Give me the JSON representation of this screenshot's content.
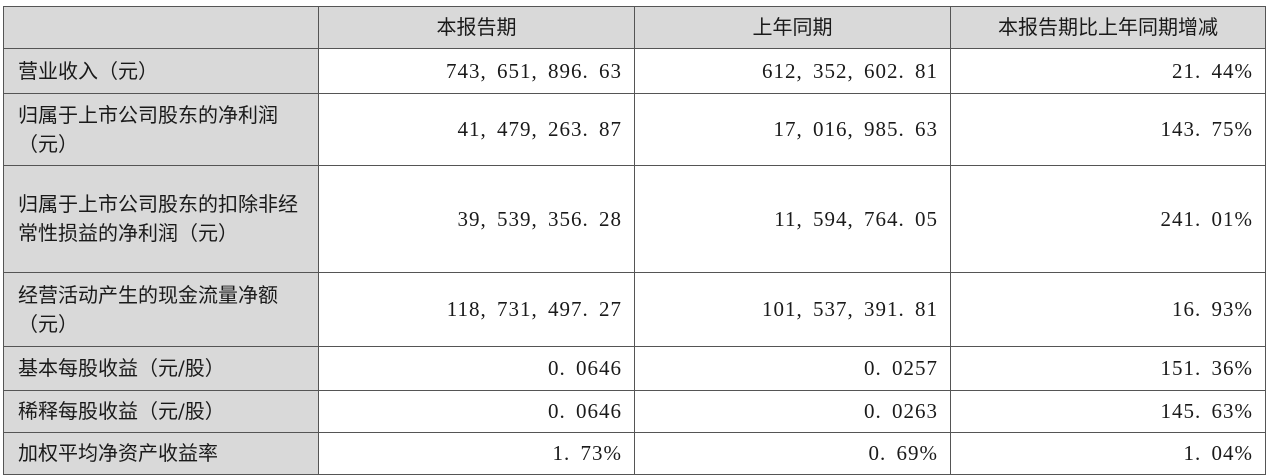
{
  "headers": [
    "",
    "本报告期",
    "上年同期",
    "本报告期比上年同期增减"
  ],
  "rows": [
    {
      "label": "营业收入（元）",
      "current": "743, 651, 896. 63",
      "prior": "612, 352, 602. 81",
      "change": "21. 44%"
    },
    {
      "label": "归属于上市公司股东的净利润（元）",
      "current": "41, 479, 263. 87",
      "prior": "17, 016, 985. 63",
      "change": "143. 75%"
    },
    {
      "label": "归属于上市公司股东的扣除非经常性损益的净利润（元）",
      "current": "39, 539, 356. 28",
      "prior": "11, 594, 764. 05",
      "change": "241. 01%"
    },
    {
      "label": "经营活动产生的现金流量净额（元）",
      "current": "118, 731, 497. 27",
      "prior": "101, 537, 391. 81",
      "change": "16. 93%"
    },
    {
      "label": "基本每股收益（元/股）",
      "current": "0. 0646",
      "prior": "0. 0257",
      "change": "151. 36%"
    },
    {
      "label": "稀释每股收益（元/股）",
      "current": "0. 0646",
      "prior": "0. 0263",
      "change": "145. 63%"
    },
    {
      "label": "加权平均净资产收益率",
      "current": "1. 73%",
      "prior": "0. 69%",
      "change": "1. 04%"
    }
  ]
}
